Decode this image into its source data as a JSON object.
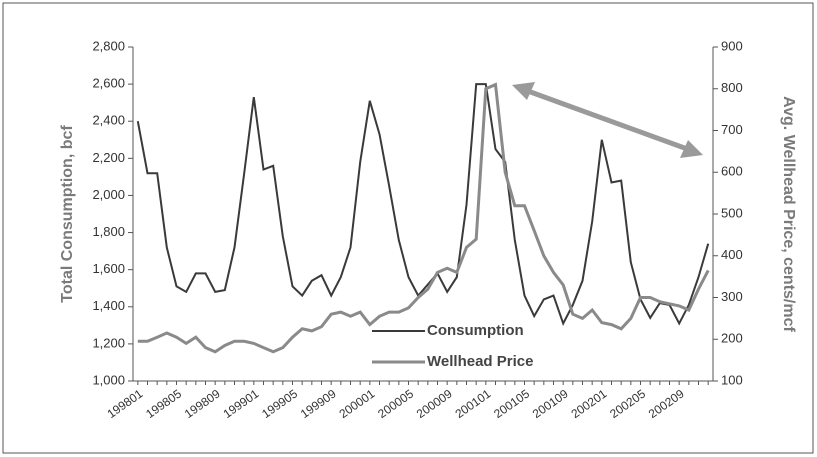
{
  "chart_data": {
    "type": "line",
    "categories": [
      "199801",
      null,
      null,
      null,
      "199805",
      null,
      null,
      null,
      "199809",
      null,
      null,
      null,
      "199901",
      null,
      null,
      null,
      "199905",
      null,
      null,
      null,
      "199909",
      null,
      null,
      null,
      "200001",
      null,
      null,
      null,
      "200005",
      null,
      null,
      null,
      "200009",
      null,
      null,
      null,
      "200101",
      null,
      null,
      null,
      "200105",
      null,
      null,
      null,
      "200109",
      null,
      null,
      null,
      "200201",
      null,
      null,
      null,
      "200205",
      null,
      null,
      null,
      "200209",
      null,
      null,
      null
    ],
    "y_label": "Total Consumption, bcf",
    "y2_label": "Avg. Wellhead Price, cents/mcf",
    "series": [
      {
        "name": "Consumption",
        "color": "#3a3a3a",
        "axis": "y",
        "values": [
          2400,
          2120,
          2120,
          1720,
          1510,
          1480,
          1580,
          1580,
          1480,
          1490,
          1720,
          2120,
          2530,
          2140,
          2160,
          1780,
          1510,
          1460,
          1540,
          1570,
          1460,
          1560,
          1720,
          2180,
          2510,
          2330,
          2050,
          1760,
          1560,
          1460,
          1520,
          1580,
          1480,
          1560,
          1950,
          2600,
          2600,
          2250,
          2180,
          1760,
          1460,
          1350,
          1440,
          1460,
          1310,
          1410,
          1540,
          1860,
          2300,
          2070,
          2080,
          1640,
          1440,
          1340,
          1420,
          1410,
          1310,
          1410,
          1560,
          1740
        ]
      },
      {
        "name": "Wellhead Price",
        "color": "#8a8a8a",
        "axis": "y2",
        "values": [
          195,
          195,
          205,
          215,
          205,
          190,
          205,
          180,
          170,
          185,
          195,
          195,
          190,
          180,
          170,
          180,
          205,
          225,
          220,
          230,
          260,
          265,
          255,
          265,
          235,
          255,
          265,
          265,
          275,
          300,
          320,
          360,
          370,
          360,
          420,
          440,
          800,
          810,
          600,
          520,
          520,
          460,
          400,
          360,
          330,
          260,
          250,
          270,
          240,
          235,
          225,
          250,
          300,
          300,
          290,
          285,
          280,
          270,
          320,
          365
        ]
      }
    ],
    "ylim": [
      1000,
      2800
    ],
    "yticks": [
      {
        "value": 1000,
        "label": "1,000"
      },
      {
        "value": 1200,
        "label": "1,200"
      },
      {
        "value": 1400,
        "label": "1,400"
      },
      {
        "value": 1600,
        "label": "1,600"
      },
      {
        "value": 1800,
        "label": "1,800"
      },
      {
        "value": 2000,
        "label": "2,000"
      },
      {
        "value": 2200,
        "label": "2,200"
      },
      {
        "value": 2400,
        "label": "2,400"
      },
      {
        "value": 2600,
        "label": "2,600"
      },
      {
        "value": 2800,
        "label": "2,800"
      }
    ],
    "y2lim": [
      100,
      900
    ],
    "y2ticks": [
      100,
      200,
      300,
      400,
      500,
      600,
      700,
      800,
      900
    ]
  }
}
